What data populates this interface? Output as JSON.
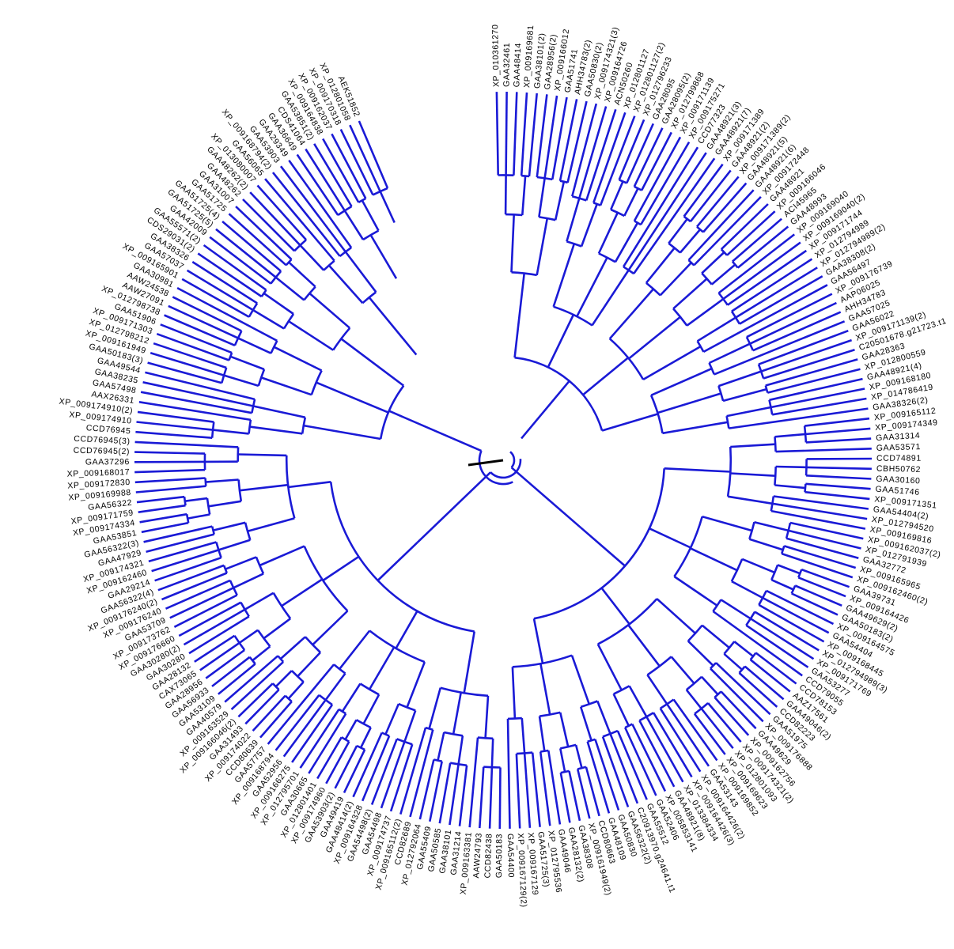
{
  "tree": {
    "branch_color": "#1a1ad6",
    "root_color": "#000000",
    "leaves": [
      "XP_010361270",
      "GAA32461",
      "GAA48414",
      "XP_009169681",
      "GAA38101(2)",
      "GAA28956(2)",
      "XP_009166012",
      "GAA51741",
      "AHH34783(2)",
      "GAA50830(2)",
      "XP_009174321(3)",
      "XP_009164726",
      "ACN50260",
      "XP_012801127",
      "XP_012801127(2)",
      "XP_012796233",
      "GAA28095",
      "GAA28095(2)",
      "XP_012799868",
      "XP_009171139",
      "XP_009175271",
      "CCD77323",
      "GAA48921(3)",
      "GAA48921(7)",
      "XP_009171389",
      "GAA48921(2)",
      "XP_009171389(2)",
      "GAA48921(5)",
      "GAA48921(6)",
      "XP_009172448",
      "GAA48921",
      "XP_009166046",
      "ACI45965",
      "GAA48993",
      "XP_009169040",
      "XP_009169040(2)",
      "XP_009171744",
      "XP_012794989",
      "XP_012794989(2)",
      "GAA38308(2)",
      "GAA56497",
      "XP_009176739",
      "AAP06025",
      "AHH34783",
      "GAA57025",
      "GAA56022",
      "XP_009171139(2)",
      "C20501678.g21723.t1",
      "GAA28363",
      "XP_012800559",
      "GAA48921(4)",
      "XP_009168180",
      "XP_014786419",
      "GAA38326(2)",
      "XP_009165112",
      "XP_009174349",
      "GAA31314",
      "GAA53571",
      "CCD74891",
      "CBH50762",
      "GAA30160",
      "GAA51746",
      "XP_009171351",
      "GAA54404(2)",
      "XP_012794520",
      "XP_009169816",
      "XP_009162037(2)",
      "XP_012791939",
      "GAA32772",
      "XP_009165965",
      "XP_009162460(2)",
      "GAA39731",
      "XP_009164426",
      "GAA49629(2)",
      "GAA50183(2)",
      "XP_009164575",
      "GAA54404",
      "XP_009168445",
      "XP_012794989(3)",
      "XP_009171769",
      "GAA53277",
      "CCD79055",
      "CCD78153",
      "AAZ17561",
      "GAA49046(2)",
      "CCD82223",
      "GAA51975",
      "XP_009176888",
      "GAA49629",
      "XP_009162756",
      "XP_009174321(2)",
      "XP_012801093",
      "XP_009169623",
      "XP_009169852",
      "GAA53143",
      "XP_009164426(2)",
      "XP_009164426(3)",
      "XP_013384334",
      "GAA48921(8)",
      "XP_005853141",
      "GAA52406",
      "GAA55512",
      "C20913970.g24641.t1",
      "GAA56322(2)",
      "GAA50830",
      "GAA48109",
      "CCD80663",
      "XP_009161949(2)",
      "GAA38308",
      "GAA28132(2)",
      "GAA49046",
      "XP_012795536",
      "GAA51725(3)",
      "XP_009167129",
      "XP_009167129(2)",
      "GAA54400",
      "GAA50183",
      "CCD82438",
      "AAW24793",
      "XP_009163381",
      "GAA31214",
      "GAA38101",
      "GAA50585",
      "GAA55409",
      "XP_012792064",
      "CCD82689",
      "XP_009165112(2)",
      "XP_009174737",
      "GAA54498",
      "GAA54498(2)",
      "XP_009164328",
      "GAA48414(2)",
      "GAA49419",
      "GAA53903(2)",
      "XP_009174960",
      "XP_012801401",
      "GAA30665",
      "XP_012795701",
      "XP_009166275",
      "GAA52956",
      "XP_009168794",
      "GAA57757",
      "CCD80639",
      "XP_009174022",
      "GAA31493",
      "XP_009166046(2)",
      "XP_009163529",
      "GAA40579",
      "GAA53109",
      "GAA56933",
      "GAA28956",
      "CAX73065",
      "GAA28132",
      "GAA30280",
      "GAA30280(2)",
      "XP_009176660",
      "XP_009173762",
      "GAA53709",
      "XP_009176240",
      "XP_009176240(2)",
      "GAA56322(4)",
      "GAA29214",
      "XP_009162460",
      "XP_009174321",
      "GAA47929",
      "GAA56322(3)",
      "GAA53851",
      "XP_009174334",
      "XP_009171759",
      "GAA56322",
      "XP_009169988",
      "XP_009172830",
      "XP_009168017",
      "GAA37296",
      "CCD76945(2)",
      "CCD76945(3)",
      "CCD76945",
      "XP_009174910",
      "XP_009174910(2)",
      "AAX26331",
      "GAA57498",
      "GAA38235",
      "GAA49544",
      "GAA50183(3)",
      "XP_009161949",
      "XP_012798212",
      "XP_009171303",
      "GAA51906",
      "XP_012798738",
      "AAW27091",
      "AAW24538",
      "GAA30981",
      "XP_009165901",
      "GAA57037",
      "GAA38326",
      "CDS29031(2)",
      "GAA55571(2)",
      "GAA42009",
      "GAA51725(5)",
      "GAA51725(4)",
      "GAA51725",
      "GAA31007",
      "GAA48262",
      "GAA48262(2)",
      "XP_013080007",
      "GAA56065",
      "XP_009168794(2)",
      "GAA53903",
      "GAA29349",
      "GAA36649",
      "CDS41064",
      "GAA53851(2)",
      "XP_009164838",
      "XP_009162037",
      "XP_009170318",
      "XP_012801058",
      "AEK51852"
    ]
  }
}
